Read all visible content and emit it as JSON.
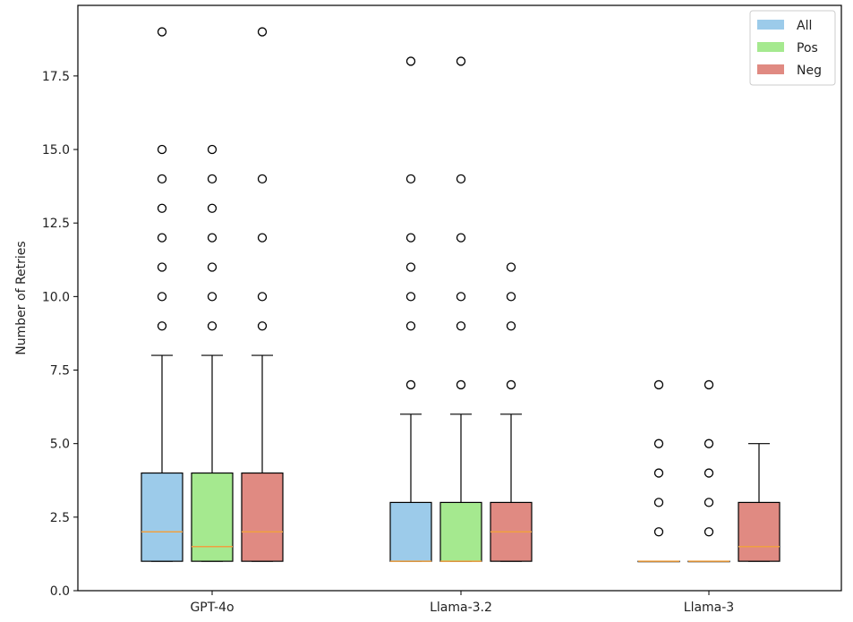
{
  "chart_data": {
    "type": "box",
    "title": "",
    "xlabel": "",
    "ylabel": "Number of Retries",
    "ylim": [
      0,
      19.9
    ],
    "yticks": [
      "0.0",
      "2.5",
      "5.0",
      "7.5",
      "10.0",
      "12.5",
      "15.0",
      "17.5"
    ],
    "grid": false,
    "legend_position": "top-right",
    "categories": [
      "GPT-4o",
      "Llama-3.2",
      "Llama-3"
    ],
    "series": [
      {
        "name": "All",
        "color": "#9ccbea",
        "boxes": [
          {
            "whisker_low": 1,
            "q1": 1,
            "median": 2,
            "q3": 4,
            "whisker_high": 8,
            "outliers": [
              9,
              10,
              11,
              12,
              13,
              14,
              15,
              19
            ]
          },
          {
            "whisker_low": 1,
            "q1": 1,
            "median": 1,
            "q3": 3,
            "whisker_high": 6,
            "outliers": [
              7,
              9,
              10,
              11,
              12,
              14,
              18
            ]
          },
          {
            "whisker_low": 1,
            "q1": 1,
            "median": 1,
            "q3": 1,
            "whisker_high": 1,
            "outliers": [
              2,
              3,
              4,
              5,
              7
            ]
          }
        ]
      },
      {
        "name": "Pos",
        "color": "#a5e98f",
        "boxes": [
          {
            "whisker_low": 1,
            "q1": 1,
            "median": 1.5,
            "q3": 4,
            "whisker_high": 8,
            "outliers": [
              9,
              10,
              11,
              12,
              13,
              14,
              15
            ]
          },
          {
            "whisker_low": 1,
            "q1": 1,
            "median": 1,
            "q3": 3,
            "whisker_high": 6,
            "outliers": [
              7,
              9,
              10,
              12,
              14,
              18
            ]
          },
          {
            "whisker_low": 1,
            "q1": 1,
            "median": 1,
            "q3": 1,
            "whisker_high": 1,
            "outliers": [
              2,
              3,
              4,
              5,
              7
            ]
          }
        ]
      },
      {
        "name": "Neg",
        "color": "#e08a82",
        "boxes": [
          {
            "whisker_low": 1,
            "q1": 1,
            "median": 2,
            "q3": 4,
            "whisker_high": 8,
            "outliers": [
              9,
              10,
              12,
              14,
              19
            ]
          },
          {
            "whisker_low": 1,
            "q1": 1,
            "median": 2,
            "q3": 3,
            "whisker_high": 6,
            "outliers": [
              7,
              9,
              10,
              11
            ]
          },
          {
            "whisker_low": 1,
            "q1": 1,
            "median": 1.5,
            "q3": 3,
            "whisker_high": 5,
            "outliers": []
          }
        ]
      }
    ],
    "median_color": "#f0a040"
  }
}
